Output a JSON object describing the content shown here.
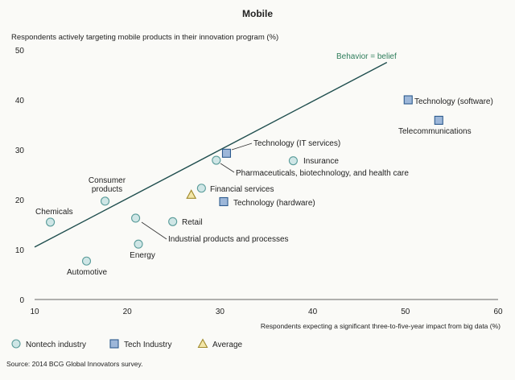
{
  "chart_data": {
    "type": "scatter",
    "title": "Mobile",
    "ylabel": "Respondents actively targeting mobile products in their innovation program (%)",
    "xlabel": "Respondents expecting a significant three-to-five-year impact from big data (%)",
    "xlim": [
      10,
      60
    ],
    "ylim": [
      0,
      50
    ],
    "xticks": [
      10,
      20,
      30,
      40,
      50,
      60
    ],
    "yticks": [
      0,
      10,
      20,
      30,
      40,
      50
    ],
    "grid": false,
    "reference_line": {
      "label": "Behavior = belief",
      "x": [
        10,
        48
      ],
      "y": [
        10.5,
        47.5
      ],
      "color": "#1f4e4e",
      "label_color": "#2e7d5b"
    },
    "legend": {
      "placement": "bottom",
      "items": [
        {
          "label": "Nontech industry",
          "marker": "circle"
        },
        {
          "label": "Tech Industry",
          "marker": "square"
        },
        {
          "label": "Average",
          "marker": "triangle"
        }
      ]
    },
    "marker_colors": {
      "circle_fill": "#cfe6e6",
      "circle_stroke": "#5a9c9a",
      "square_fill": "#9db7d9",
      "square_stroke": "#2d5b8e",
      "triangle_fill": "#f3e6a8",
      "triangle_stroke": "#a08a2c"
    },
    "points": [
      {
        "label": "Chemicals",
        "x": 11.7,
        "y": 15.5,
        "group": "Nontech industry",
        "marker": "circle"
      },
      {
        "label": "Consumer products",
        "x": 17.6,
        "y": 19.7,
        "group": "Nontech industry",
        "marker": "circle"
      },
      {
        "label": "Automotive",
        "x": 15.6,
        "y": 7.7,
        "group": "Nontech industry",
        "marker": "circle"
      },
      {
        "label": "Energy",
        "x": 21.2,
        "y": 11.1,
        "group": "Nontech industry",
        "marker": "circle"
      },
      {
        "label": "Industrial products and processes",
        "x": 20.9,
        "y": 16.3,
        "group": "Nontech industry",
        "marker": "circle"
      },
      {
        "label": "Retail",
        "x": 24.9,
        "y": 15.6,
        "group": "Nontech industry",
        "marker": "circle"
      },
      {
        "label": "Financial services",
        "x": 28.0,
        "y": 22.3,
        "group": "Nontech industry",
        "marker": "circle"
      },
      {
        "label": "Pharmaceuticals, biotechnology, and health care",
        "x": 29.6,
        "y": 27.9,
        "group": "Nontech industry",
        "marker": "circle"
      },
      {
        "label": "Insurance",
        "x": 37.9,
        "y": 27.8,
        "group": "Nontech industry",
        "marker": "circle"
      },
      {
        "label": "Technology (IT services)",
        "x": 30.7,
        "y": 29.3,
        "group": "Tech Industry",
        "marker": "square"
      },
      {
        "label": "Technology (hardware)",
        "x": 30.4,
        "y": 19.6,
        "group": "Tech Industry",
        "marker": "square"
      },
      {
        "label": "Technology (software)",
        "x": 50.3,
        "y": 40.0,
        "group": "Tech Industry",
        "marker": "square"
      },
      {
        "label": "Telecommunications",
        "x": 53.6,
        "y": 35.9,
        "group": "Tech Industry",
        "marker": "square"
      },
      {
        "label": "",
        "x": 26.9,
        "y": 21.0,
        "group": "Average",
        "marker": "triangle"
      }
    ]
  },
  "source": "Source: 2014 BCG Global Innovators survey."
}
